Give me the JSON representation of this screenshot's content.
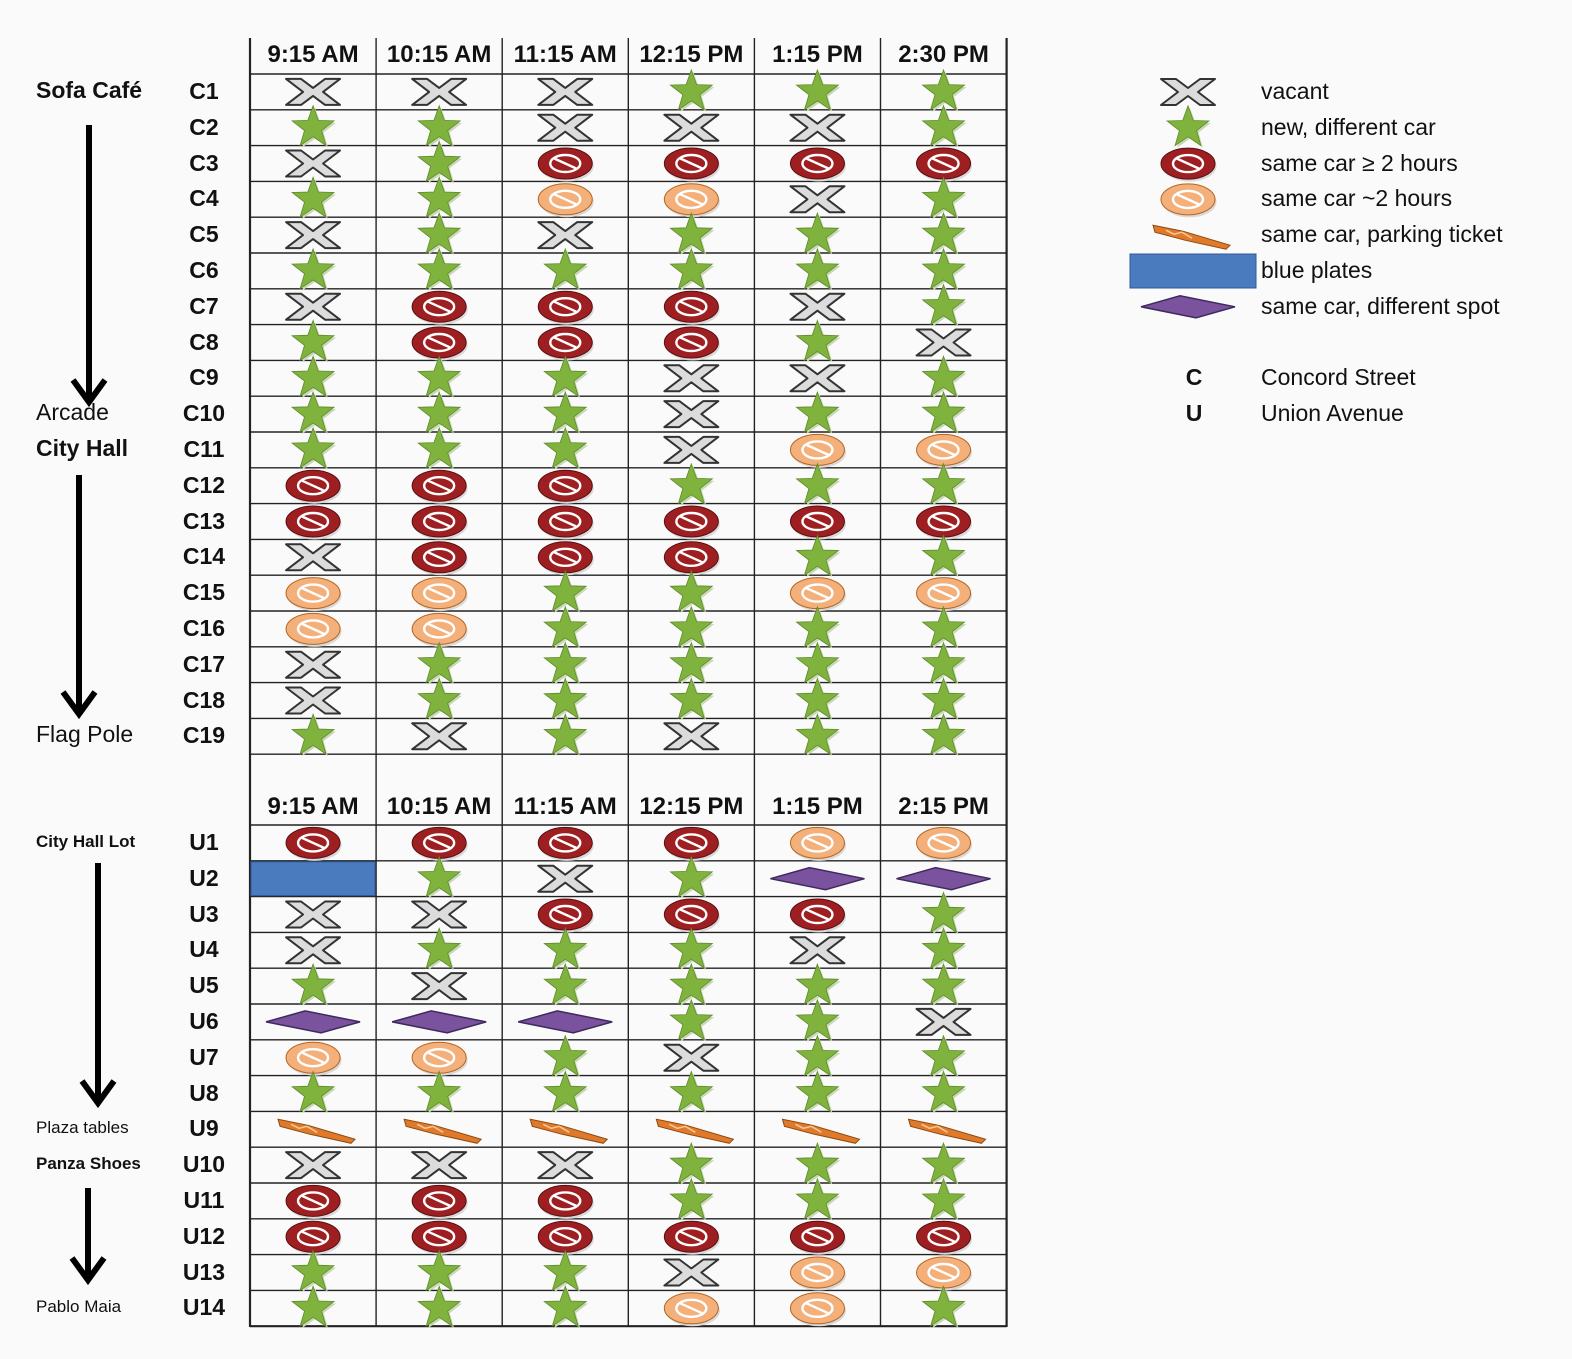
{
  "chart_data": {
    "type": "table",
    "legend": {
      "items": [
        {
          "symbol": "vacant",
          "label": "vacant"
        },
        {
          "symbol": "star",
          "label": "new, different car"
        },
        {
          "symbol": "red",
          "label": "same car ≥ 2 hours"
        },
        {
          "symbol": "orange",
          "label": "same car ~2 hours"
        },
        {
          "symbol": "ticket",
          "label": "same car, parking ticket"
        },
        {
          "symbol": "blue",
          "label": "blue plates"
        },
        {
          "symbol": "diamond",
          "label": "same car, different spot"
        }
      ],
      "keys": [
        {
          "key": "C",
          "label": "Concord Street"
        },
        {
          "key": "U",
          "label": "Union Avenue"
        }
      ],
      "placement": "right"
    },
    "colors": {
      "star": "#7fb33e",
      "red": "#9e1f22",
      "orange": "#f4b07a",
      "ticket": "#e07a2a",
      "blue": "#4a7bbf",
      "diamond": "#7a529e"
    },
    "tables": [
      {
        "street": "Concord Street",
        "columns": [
          "9:15 AM",
          "10:15 AM",
          "11:15 AM",
          "12:15 PM",
          "1:15 PM",
          "2:30 PM"
        ],
        "locations": [
          {
            "label": "Sofa Café",
            "row": "C1",
            "bold": true
          },
          {
            "label": "Arcade",
            "row": "C10",
            "bold": false
          },
          {
            "label": "City Hall",
            "row": "C11",
            "bold": true
          },
          {
            "label": "Flag Pole",
            "row": "C19",
            "bold": false
          }
        ],
        "rows": [
          {
            "label": "C1",
            "cells": [
              "vacant",
              "vacant",
              "vacant",
              "star",
              "star",
              "star"
            ]
          },
          {
            "label": "C2",
            "cells": [
              "star",
              "star",
              "vacant",
              "vacant",
              "vacant",
              "star"
            ]
          },
          {
            "label": "C3",
            "cells": [
              "vacant",
              "star",
              "red",
              "red",
              "red",
              "red"
            ]
          },
          {
            "label": "C4",
            "cells": [
              "star",
              "star",
              "orange",
              "orange",
              "vacant",
              "star"
            ]
          },
          {
            "label": "C5",
            "cells": [
              "vacant",
              "star",
              "vacant",
              "star",
              "star",
              "star"
            ]
          },
          {
            "label": "C6",
            "cells": [
              "star",
              "star",
              "star",
              "star",
              "star",
              "star"
            ]
          },
          {
            "label": "C7",
            "cells": [
              "vacant",
              "red",
              "red",
              "red",
              "vacant",
              "star"
            ]
          },
          {
            "label": "C8",
            "cells": [
              "star",
              "red",
              "red",
              "red",
              "star",
              "vacant"
            ]
          },
          {
            "label": "C9",
            "cells": [
              "star",
              "star",
              "star",
              "vacant",
              "vacant",
              "star"
            ]
          },
          {
            "label": "C10",
            "cells": [
              "star",
              "star",
              "star",
              "vacant",
              "star",
              "star"
            ]
          },
          {
            "label": "C11",
            "cells": [
              "star",
              "star",
              "star",
              "vacant",
              "orange",
              "orange"
            ]
          },
          {
            "label": "C12",
            "cells": [
              "red",
              "red",
              "red",
              "star",
              "star",
              "star"
            ]
          },
          {
            "label": "C13",
            "cells": [
              "red",
              "red",
              "red",
              "red",
              "red",
              "red"
            ]
          },
          {
            "label": "C14",
            "cells": [
              "vacant",
              "red",
              "red",
              "red",
              "star",
              "star"
            ]
          },
          {
            "label": "C15",
            "cells": [
              "orange",
              "orange",
              "star",
              "star",
              "orange",
              "orange"
            ]
          },
          {
            "label": "C16",
            "cells": [
              "orange",
              "orange",
              "star",
              "star",
              "star",
              "star"
            ]
          },
          {
            "label": "C17",
            "cells": [
              "vacant",
              "star",
              "star",
              "star",
              "star",
              "star"
            ]
          },
          {
            "label": "C18",
            "cells": [
              "vacant",
              "star",
              "star",
              "star",
              "star",
              "star"
            ]
          },
          {
            "label": "C19",
            "cells": [
              "star",
              "vacant",
              "star",
              "vacant",
              "star",
              "star"
            ]
          }
        ]
      },
      {
        "street": "Union Avenue",
        "columns": [
          "9:15 AM",
          "10:15 AM",
          "11:15 AM",
          "12:15 PM",
          "1:15 PM",
          "2:15 PM"
        ],
        "locations": [
          {
            "label": "City Hall Lot",
            "row": "U1",
            "bold": true
          },
          {
            "label": "Plaza tables",
            "row": "U9",
            "bold": false
          },
          {
            "label": "Panza Shoes",
            "row": "U10",
            "bold": true
          },
          {
            "label": "Pablo Maia",
            "row": "U14",
            "bold": false
          }
        ],
        "rows": [
          {
            "label": "U1",
            "cells": [
              "red",
              "red",
              "red",
              "red",
              "orange",
              "orange"
            ]
          },
          {
            "label": "U2",
            "cells": [
              "blue",
              "star",
              "vacant",
              "star",
              "diamond",
              "diamond"
            ]
          },
          {
            "label": "U3",
            "cells": [
              "vacant",
              "vacant",
              "red",
              "red",
              "red",
              "star"
            ]
          },
          {
            "label": "U4",
            "cells": [
              "vacant",
              "star",
              "star",
              "star",
              "vacant",
              "star"
            ]
          },
          {
            "label": "U5",
            "cells": [
              "star",
              "vacant",
              "star",
              "star",
              "star",
              "star"
            ]
          },
          {
            "label": "U6",
            "cells": [
              "diamond",
              "diamond",
              "diamond",
              "star",
              "star",
              "vacant"
            ]
          },
          {
            "label": "U7",
            "cells": [
              "orange",
              "orange",
              "star",
              "vacant",
              "star",
              "star"
            ]
          },
          {
            "label": "U8",
            "cells": [
              "star",
              "star",
              "star",
              "star",
              "star",
              "star"
            ]
          },
          {
            "label": "U9",
            "cells": [
              "ticket",
              "ticket",
              "ticket",
              "ticket",
              "ticket",
              "ticket"
            ]
          },
          {
            "label": "U10",
            "cells": [
              "vacant",
              "vacant",
              "vacant",
              "star",
              "star",
              "star"
            ]
          },
          {
            "label": "U11",
            "cells": [
              "red",
              "red",
              "red",
              "star",
              "star",
              "star"
            ]
          },
          {
            "label": "U12",
            "cells": [
              "red",
              "red",
              "red",
              "red",
              "red",
              "red"
            ]
          },
          {
            "label": "U13",
            "cells": [
              "star",
              "star",
              "star",
              "vacant",
              "orange",
              "orange"
            ]
          },
          {
            "label": "U14",
            "cells": [
              "star",
              "star",
              "star",
              "orange",
              "orange",
              "star"
            ]
          }
        ]
      }
    ]
  }
}
